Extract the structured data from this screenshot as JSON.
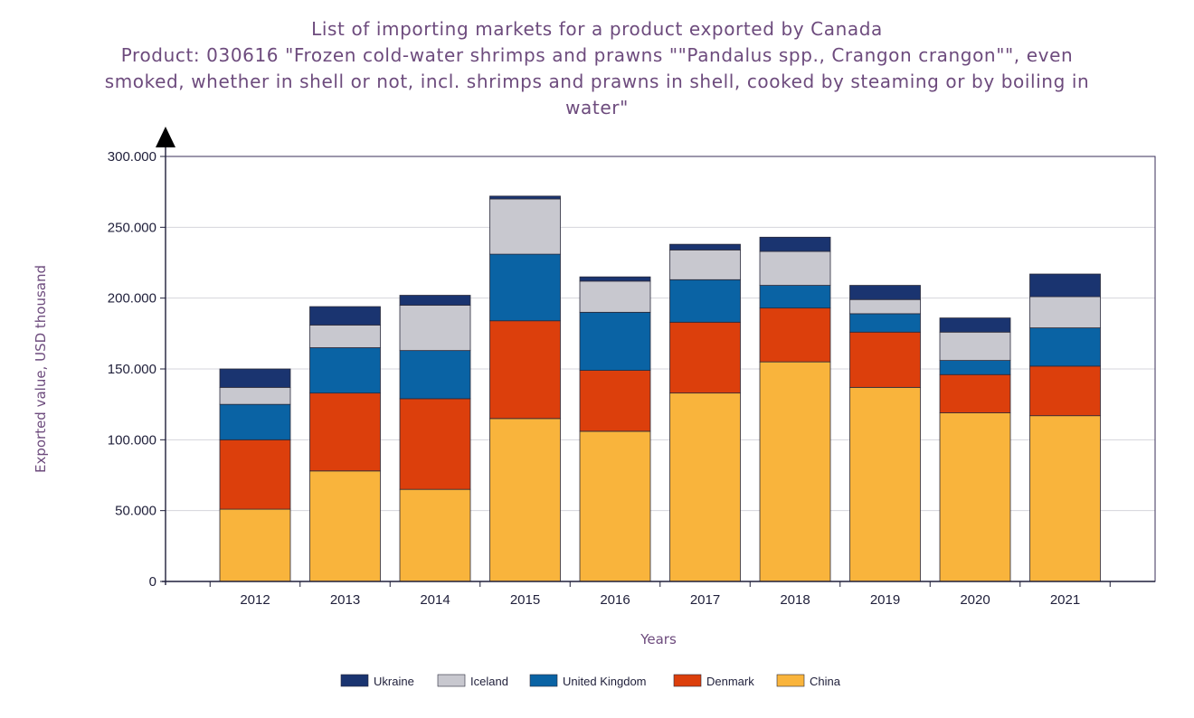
{
  "chart_data": {
    "type": "bar",
    "stacked": true,
    "title_lines": [
      "List of importing markets for a product exported by Canada",
      "Product: 030616 \"Frozen cold-water shrimps and prawns \"\"Pandalus spp., Crangon crangon\"\", even",
      "smoked, whether in shell or not, incl. shrimps and prawns in shell, cooked by steaming or by boiling in",
      "water\""
    ],
    "xlabel": "Years",
    "ylabel": "Exported value, USD thousand",
    "ylim": [
      0,
      300000
    ],
    "yticks": [
      0,
      50000,
      100000,
      150000,
      200000,
      250000,
      300000
    ],
    "ytick_labels": [
      "0",
      "50.000",
      "100.000",
      "150.000",
      "200.000",
      "250.000",
      "300.000"
    ],
    "categories": [
      "2012",
      "2013",
      "2014",
      "2015",
      "2016",
      "2017",
      "2018",
      "2019",
      "2020",
      "2021"
    ],
    "grid": true,
    "legend_position": "bottom",
    "series": [
      {
        "name": "China",
        "color": "#F9B43C",
        "values": [
          51000,
          78000,
          65000,
          115000,
          106000,
          133000,
          155000,
          137000,
          119000,
          117000
        ]
      },
      {
        "name": "Denmark",
        "color": "#DC3F0C",
        "values": [
          49000,
          55000,
          64000,
          69000,
          43000,
          50000,
          38000,
          39000,
          27000,
          35000
        ]
      },
      {
        "name": "United Kingdom",
        "color": "#0A63A4",
        "values": [
          25000,
          32000,
          34000,
          47000,
          41000,
          30000,
          16000,
          13000,
          10000,
          27000
        ]
      },
      {
        "name": "Iceland",
        "color": "#C8C8CF",
        "values": [
          12000,
          16000,
          32000,
          39000,
          22000,
          21000,
          24000,
          10000,
          20000,
          22000
        ]
      },
      {
        "name": "Ukraine",
        "color": "#1A3470",
        "values": [
          13000,
          13000,
          7000,
          2000,
          3000,
          4000,
          10000,
          10000,
          10000,
          16000
        ]
      }
    ],
    "legend_order": [
      "Ukraine",
      "Iceland",
      "United Kingdom",
      "Denmark",
      "China"
    ]
  }
}
